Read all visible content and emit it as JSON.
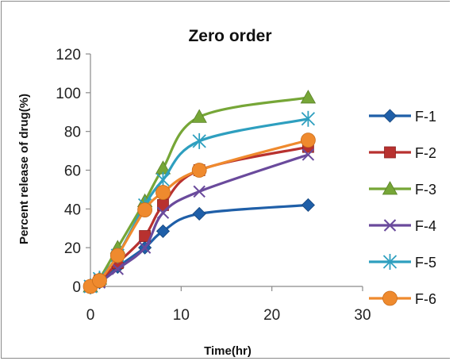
{
  "chart_data": {
    "type": "line",
    "title": "Zero order",
    "xlabel": "Time(hr)",
    "ylabel": "Percent release of drug(%)",
    "xlim": [
      0,
      30
    ],
    "ylim": [
      0,
      120
    ],
    "x_ticks": [
      "0",
      "10",
      "20",
      "30"
    ],
    "y_ticks": [
      "0",
      "20",
      "40",
      "60",
      "80",
      "100",
      "120"
    ],
    "grid": false,
    "smooth": true,
    "legend_position": "right",
    "series": [
      {
        "name": "F-1",
        "color": "#1f5fa8",
        "marker": "diamond",
        "x": [
          0,
          1,
          3,
          6,
          8,
          12,
          24
        ],
        "y": [
          0,
          2,
          10,
          20,
          28.5,
          37.5,
          42
        ]
      },
      {
        "name": "F-2",
        "color": "#b8312f",
        "marker": "square",
        "x": [
          0,
          1,
          3,
          6,
          8,
          12,
          24
        ],
        "y": [
          0,
          3,
          12,
          26,
          42,
          60,
          72
        ]
      },
      {
        "name": "F-3",
        "color": "#76a637",
        "marker": "triangle",
        "x": [
          0,
          1,
          3,
          6,
          8,
          12,
          24
        ],
        "y": [
          0,
          4,
          20,
          44,
          61,
          87.5,
          97.5
        ]
      },
      {
        "name": "F-4",
        "color": "#6a4a9c",
        "marker": "x",
        "x": [
          0,
          1,
          3,
          6,
          8,
          12,
          24
        ],
        "y": [
          0,
          2,
          9,
          20,
          38,
          49,
          68
        ]
      },
      {
        "name": "F-5",
        "color": "#2e9fbf",
        "marker": "asterisk",
        "x": [
          0,
          1,
          3,
          6,
          8,
          12,
          24
        ],
        "y": [
          0,
          4,
          16,
          42,
          55,
          75,
          86.5
        ]
      },
      {
        "name": "F-6",
        "color": "#ef8a2e",
        "marker": "circle",
        "x": [
          0,
          1,
          3,
          6,
          8,
          12,
          24
        ],
        "y": [
          0,
          3,
          16,
          39.5,
          48.5,
          60,
          75.5
        ]
      }
    ]
  }
}
